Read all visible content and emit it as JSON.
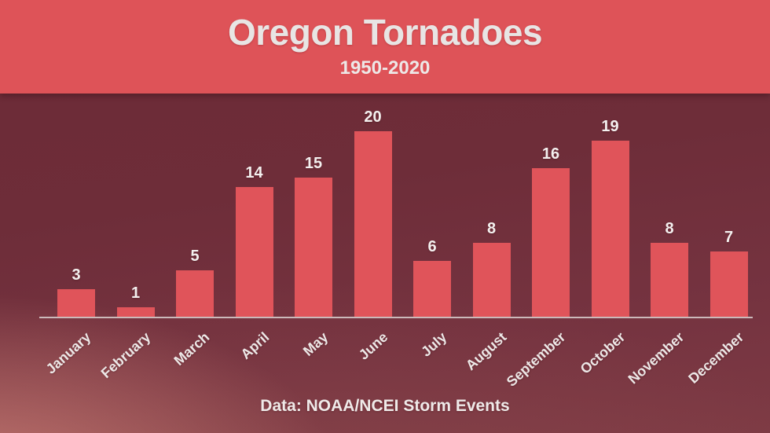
{
  "header": {
    "title": "Oregon Tornadoes",
    "subtitle": "1950-2020",
    "background_color": "#DE5358",
    "text_color": "#E8E5E4"
  },
  "footer": {
    "source": "Data: NOAA/NCEI Storm Events"
  },
  "chart_data": {
    "type": "bar",
    "title": "Oregon Tornadoes",
    "subtitle": "1950-2020",
    "categories": [
      "January",
      "February",
      "March",
      "April",
      "May",
      "June",
      "July",
      "August",
      "September",
      "October",
      "November",
      "December"
    ],
    "values": [
      3,
      1,
      5,
      14,
      15,
      20,
      6,
      8,
      16,
      19,
      8,
      7
    ],
    "xlabel": "",
    "ylabel": "",
    "ylim": [
      0,
      20
    ],
    "grid": false,
    "legend": false,
    "data_labels": true,
    "bar_color": "#E0545A",
    "value_label_color": "#F4F0EF",
    "tick_label_color": "#EDE8E7",
    "axis_line_color": "#DBD1D0",
    "background_color": "#6E2D39",
    "source": "Data: NOAA/NCEI Storm Events"
  }
}
